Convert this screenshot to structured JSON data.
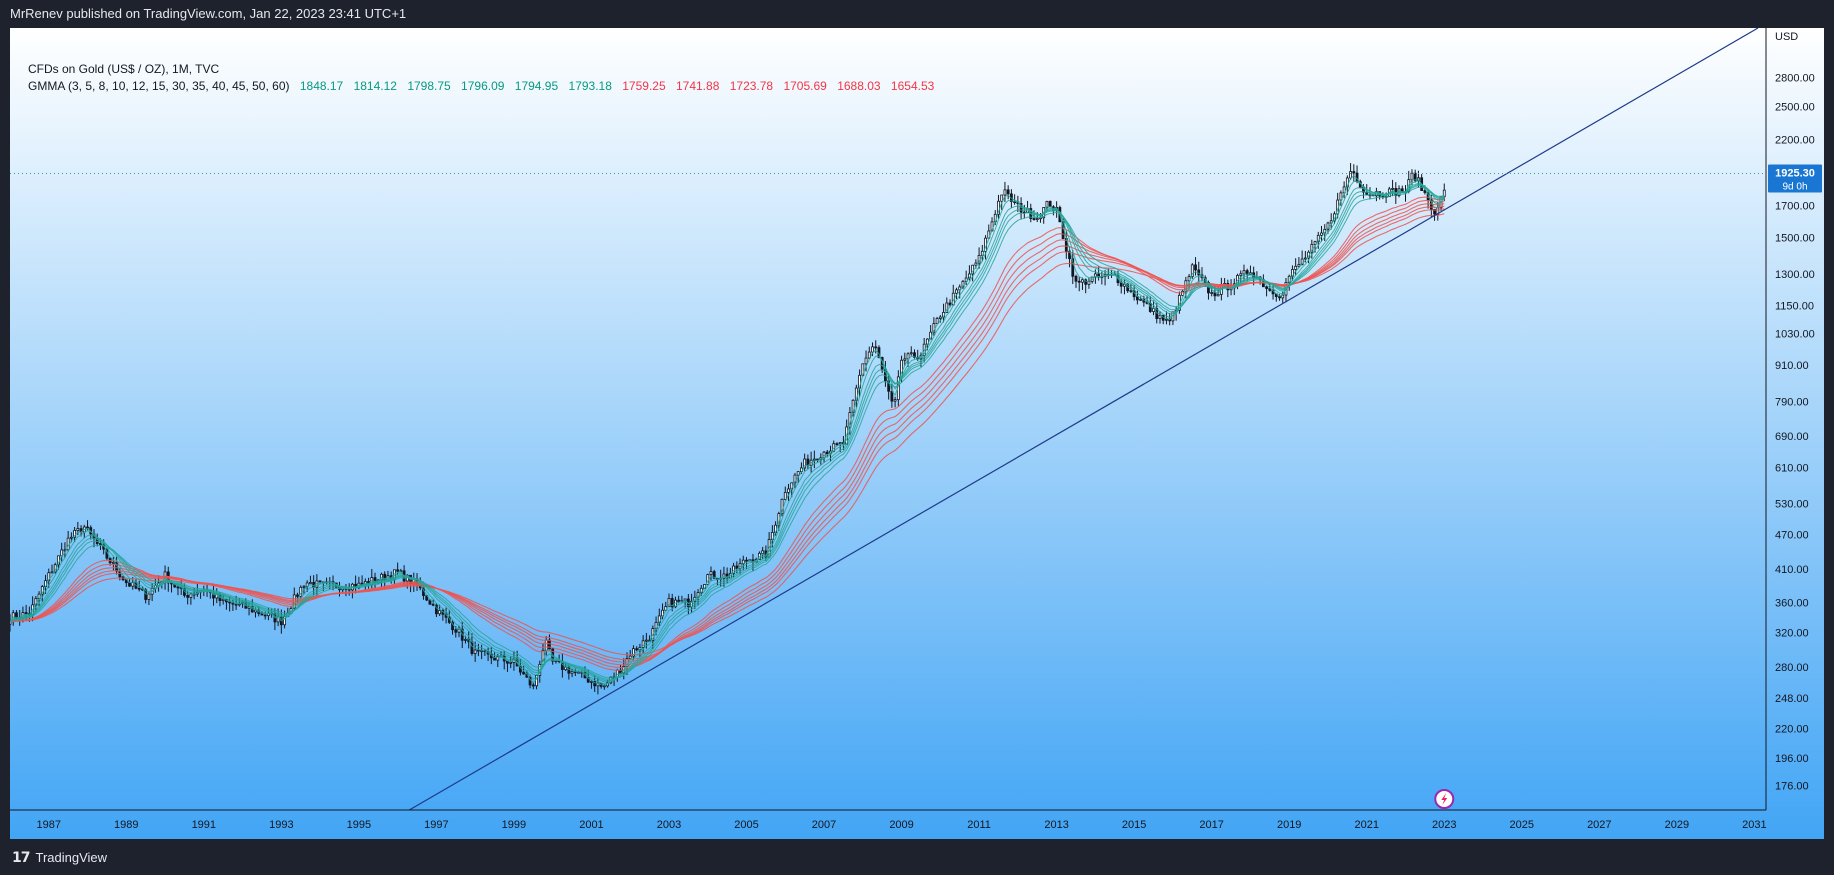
{
  "header": {
    "published": "MrRenev published on TradingView.com, Jan 22, 2023 23:41 UTC+1"
  },
  "footer": {
    "brand": "TradingView"
  },
  "legend": {
    "symbol": "CFDs on Gold (US$ / OZ), 1M, TVC",
    "gmma_label": "GMMA (3, 5, 8, 10, 12, 15, 30, 35, 40, 45, 50, 60)",
    "short_values": [
      "1848.17",
      "1814.12",
      "1798.75",
      "1796.09",
      "1794.95",
      "1793.18"
    ],
    "long_values": [
      "1759.25",
      "1741.88",
      "1723.78",
      "1705.69",
      "1688.03",
      "1654.53"
    ]
  },
  "price_badge": {
    "price": "1925.30",
    "countdown": "9d 0h"
  },
  "colors": {
    "bg_top": "#ffffff",
    "bg_bottom": "#42a5f5",
    "candle": "#131722",
    "short_ema": "#26a69a",
    "long_ema": "#ef5350",
    "trendline": "#1e3a8a",
    "badge": "#1976d2",
    "short_text": "#089981",
    "long_text": "#f23645"
  },
  "chart_data": {
    "type": "candlestick",
    "title": "CFDs on Gold (US$ / OZ), 1M, TVC",
    "ylabel": "USD",
    "y_scale": "log",
    "ylim": [
      160,
      3400
    ],
    "xlim": [
      1986.0,
      2031.3
    ],
    "y_ticks": [
      "176.00",
      "196.00",
      "220.00",
      "248.00",
      "280.00",
      "320.00",
      "360.00",
      "410.00",
      "470.00",
      "530.00",
      "610.00",
      "690.00",
      "790.00",
      "910.00",
      "1030.00",
      "1150.00",
      "1300.00",
      "1500.00",
      "1700.00",
      "2200.00",
      "2500.00",
      "2800.00",
      "USD"
    ],
    "x_ticks": [
      "1987",
      "1989",
      "1991",
      "1993",
      "1995",
      "1997",
      "1999",
      "2001",
      "2003",
      "2005",
      "2007",
      "2009",
      "2011",
      "2013",
      "2015",
      "2017",
      "2019",
      "2021",
      "2023",
      "2025",
      "2027",
      "2029",
      "2031"
    ],
    "last_price": 1925.3,
    "price_path": [
      [
        1986.0,
        340
      ],
      [
        1986.5,
        345
      ],
      [
        1987.0,
        400
      ],
      [
        1987.5,
        460
      ],
      [
        1987.9,
        485
      ],
      [
        1988.5,
        430
      ],
      [
        1989.0,
        390
      ],
      [
        1989.5,
        370
      ],
      [
        1990.0,
        400
      ],
      [
        1990.5,
        370
      ],
      [
        1991.0,
        380
      ],
      [
        1991.5,
        360
      ],
      [
        1992.0,
        355
      ],
      [
        1992.5,
        345
      ],
      [
        1993.0,
        335
      ],
      [
        1993.6,
        390
      ],
      [
        1994.0,
        385
      ],
      [
        1995.0,
        385
      ],
      [
        1996.0,
        405
      ],
      [
        1996.5,
        385
      ],
      [
        1997.0,
        350
      ],
      [
        1997.5,
        325
      ],
      [
        1998.0,
        295
      ],
      [
        1998.5,
        290
      ],
      [
        1999.0,
        285
      ],
      [
        1999.5,
        258
      ],
      [
        1999.8,
        310
      ],
      [
        2000.0,
        285
      ],
      [
        2000.5,
        275
      ],
      [
        2001.0,
        265
      ],
      [
        2001.3,
        258
      ],
      [
        2001.8,
        280
      ],
      [
        2002.0,
        295
      ],
      [
        2002.5,
        315
      ],
      [
        2003.0,
        360
      ],
      [
        2003.5,
        360
      ],
      [
        2004.0,
        400
      ],
      [
        2004.5,
        400
      ],
      [
        2005.0,
        425
      ],
      [
        2005.5,
        435
      ],
      [
        2006.0,
        560
      ],
      [
        2006.5,
        620
      ],
      [
        2007.0,
        650
      ],
      [
        2007.5,
        670
      ],
      [
        2008.0,
        920
      ],
      [
        2008.3,
        990
      ],
      [
        2008.8,
        760
      ],
      [
        2009.0,
        930
      ],
      [
        2009.5,
        950
      ],
      [
        2010.0,
        1110
      ],
      [
        2010.5,
        1230
      ],
      [
        2011.0,
        1380
      ],
      [
        2011.6,
        1800
      ],
      [
        2012.0,
        1690
      ],
      [
        2012.5,
        1620
      ],
      [
        2012.8,
        1720
      ],
      [
        2013.0,
        1660
      ],
      [
        2013.5,
        1250
      ],
      [
        2014.0,
        1280
      ],
      [
        2014.5,
        1290
      ],
      [
        2015.0,
        1200
      ],
      [
        2015.5,
        1120
      ],
      [
        2015.9,
        1070
      ],
      [
        2016.5,
        1330
      ],
      [
        2017.0,
        1200
      ],
      [
        2017.5,
        1250
      ],
      [
        2018.0,
        1320
      ],
      [
        2018.5,
        1220
      ],
      [
        2018.8,
        1200
      ],
      [
        2019.0,
        1290
      ],
      [
        2019.5,
        1410
      ],
      [
        2020.0,
        1570
      ],
      [
        2020.6,
        1960
      ],
      [
        2021.0,
        1780
      ],
      [
        2021.5,
        1790
      ],
      [
        2022.0,
        1800
      ],
      [
        2022.2,
        1930
      ],
      [
        2022.8,
        1640
      ],
      [
        2023.0,
        1820
      ],
      [
        2023.07,
        1925
      ]
    ],
    "trendline": {
      "x": [
        1996.3,
        2023.0
      ],
      "y": [
        160,
        1670
      ]
    }
  }
}
